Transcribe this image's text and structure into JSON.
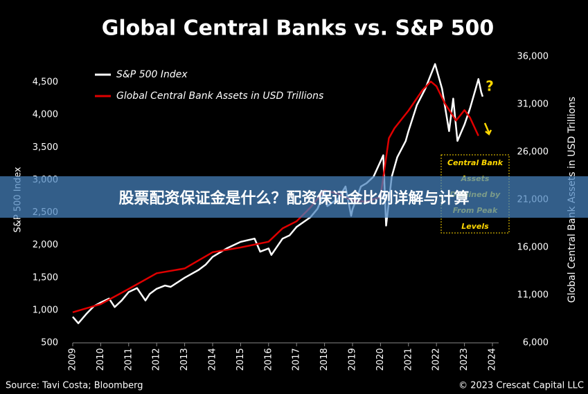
{
  "chart_data": {
    "type": "line",
    "title": "Global Central Banks vs. S&P 500",
    "y_label": "S&P 500 Index",
    "y2_label": "Global Central Bank Assets in USD Trillions",
    "source": "Source: Tavi Costa; Bloomberg",
    "credit": "© 2023 Crescat Capital LLC",
    "xlim": [
      2009,
      2024
    ],
    "xticks": [
      2009,
      2010,
      2011,
      2012,
      2013,
      2014,
      2015,
      2016,
      2017,
      2018,
      2019,
      2020,
      2021,
      2022,
      2023,
      2024
    ],
    "ylim": [
      500,
      4893
    ],
    "yticks": [
      500,
      {
        "value": 1000,
        "label": "1,000"
      },
      {
        "value": 1500,
        "label": "1,500"
      },
      {
        "value": 2000,
        "label": "2,000"
      },
      {
        "value": 2500,
        "label": "2,500"
      },
      {
        "value": 3000,
        "label": "3,000"
      },
      {
        "value": 3500,
        "label": "3,500"
      },
      {
        "value": 4000,
        "label": "4,000"
      },
      {
        "value": 4500,
        "label": "4,500"
      }
    ],
    "y2lim": [
      6000,
      36000
    ],
    "y2ticks": [
      {
        "value": 6000,
        "label": "6,000"
      },
      {
        "value": 11000,
        "label": "11,000"
      },
      {
        "value": 16000,
        "label": "16,000"
      },
      {
        "value": 21000,
        "label": "21,000"
      },
      {
        "value": 26000,
        "label": "26,000"
      },
      {
        "value": 31000,
        "label": "31,000"
      },
      {
        "value": 36000,
        "label": "36,000"
      }
    ],
    "legend": "top-left",
    "series": [
      {
        "name": "S&P 500 Index",
        "color": "#ffffff",
        "x": [
          2009.0,
          2009.2,
          2009.5,
          2009.75,
          2010.0,
          2010.3,
          2010.5,
          2010.75,
          2011.0,
          2011.3,
          2011.6,
          2011.75,
          2012.0,
          2012.3,
          2012.5,
          2012.75,
          2013.0,
          2013.5,
          2013.75,
          2014.0,
          2014.5,
          2014.75,
          2015.0,
          2015.5,
          2015.7,
          2016.0,
          2016.1,
          2016.5,
          2016.75,
          2017.0,
          2017.5,
          2017.75,
          2018.0,
          2018.1,
          2018.5,
          2018.75,
          2018.95,
          2019.0,
          2019.3,
          2019.5,
          2019.75,
          2020.1,
          2020.2,
          2020.4,
          2020.6,
          2020.9,
          2021.0,
          2021.3,
          2021.6,
          2021.95,
          2022.2,
          2022.45,
          2022.6,
          2022.75,
          2023.0,
          2023.2,
          2023.4,
          2023.5,
          2023.6,
          2023.65
        ],
        "values": [
          900,
          800,
          950,
          1060,
          1120,
          1180,
          1050,
          1150,
          1280,
          1340,
          1150,
          1250,
          1330,
          1380,
          1360,
          1430,
          1500,
          1620,
          1700,
          1820,
          1950,
          2000,
          2050,
          2100,
          1900,
          1950,
          1850,
          2100,
          2150,
          2280,
          2430,
          2560,
          2820,
          2600,
          2720,
          2900,
          2450,
          2550,
          2900,
          2950,
          3050,
          3380,
          2300,
          3050,
          3350,
          3600,
          3750,
          4150,
          4400,
          4780,
          4400,
          3750,
          4250,
          3600,
          3850,
          4100,
          4400,
          4550,
          4350,
          4280
        ]
      },
      {
        "name": "Global Central Bank Assets in USD Trillions",
        "color": "#e00000",
        "axis": "y2",
        "x": [
          2009.0,
          2010.0,
          2011.0,
          2012.0,
          2013.0,
          2014.0,
          2015.0,
          2016.0,
          2016.5,
          2017.0,
          2017.5,
          2018.0,
          2018.5,
          2019.0,
          2019.5,
          2020.0,
          2020.3,
          2020.5,
          2021.0,
          2021.5,
          2021.8,
          2022.0,
          2022.3,
          2022.7,
          2023.0,
          2023.2,
          2023.5
        ],
        "values": [
          9200,
          10060,
          11650,
          13300,
          13800,
          15500,
          16000,
          16600,
          18000,
          18750,
          20200,
          22000,
          21600,
          20900,
          20800,
          21300,
          27450,
          28500,
          30350,
          32500,
          33400,
          32900,
          31100,
          29300,
          30400,
          29600,
          27700
        ]
      }
    ],
    "annotations": {
      "question": "?",
      "box": [
        "Central Bank",
        "Assets",
        "Declined by",
        "From Peak",
        "Levels"
      ]
    }
  },
  "banner": "股票配资保证金是什么？配资保证金比例详解与计算"
}
